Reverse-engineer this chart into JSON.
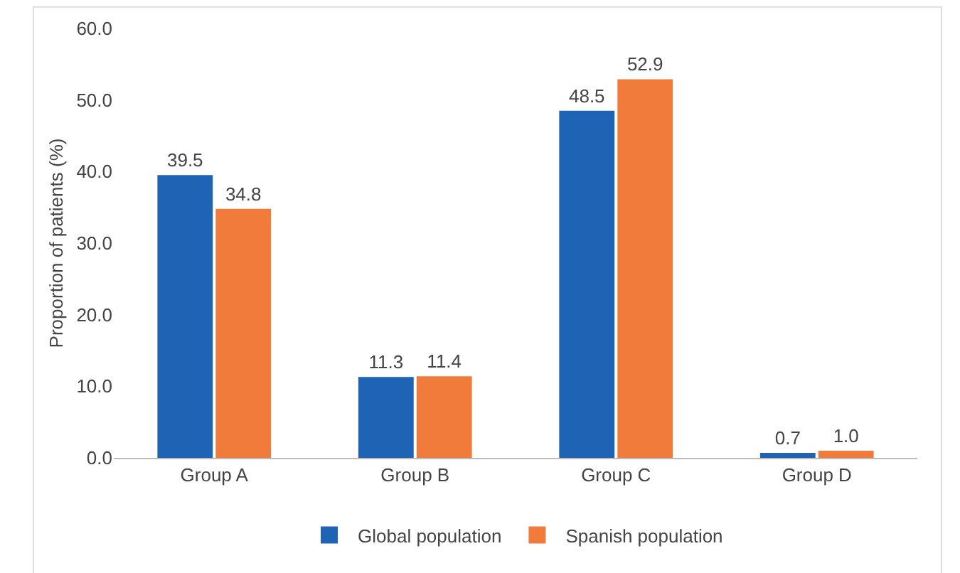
{
  "chart_data": {
    "type": "bar",
    "ylabel": "Proportion of patients (%)",
    "categories": [
      "Group A",
      "Group B",
      "Group C",
      "Group D"
    ],
    "series": [
      {
        "name": "Global population",
        "color": "#1f63b4",
        "values": [
          39.5,
          11.3,
          48.5,
          0.7
        ],
        "value_labels": [
          "39.5",
          "11.3",
          "48.5",
          "0.7"
        ]
      },
      {
        "name": "Spanish population",
        "color": "#f07b3b",
        "values": [
          34.8,
          11.4,
          52.9,
          1.0
        ],
        "value_labels": [
          "34.8",
          "11.4",
          "52.9",
          "1.0"
        ]
      }
    ],
    "ylim": [
      0,
      60
    ],
    "yticks": [
      {
        "value": 0,
        "label": "0.0"
      },
      {
        "value": 10,
        "label": "10.0"
      },
      {
        "value": 20,
        "label": "20.0"
      },
      {
        "value": 30,
        "label": "30.0"
      },
      {
        "value": 40,
        "label": "40.0"
      },
      {
        "value": 50,
        "label": "50.0"
      },
      {
        "value": 60,
        "label": "60.0"
      }
    ],
    "grid": false,
    "legend": "bottom"
  }
}
